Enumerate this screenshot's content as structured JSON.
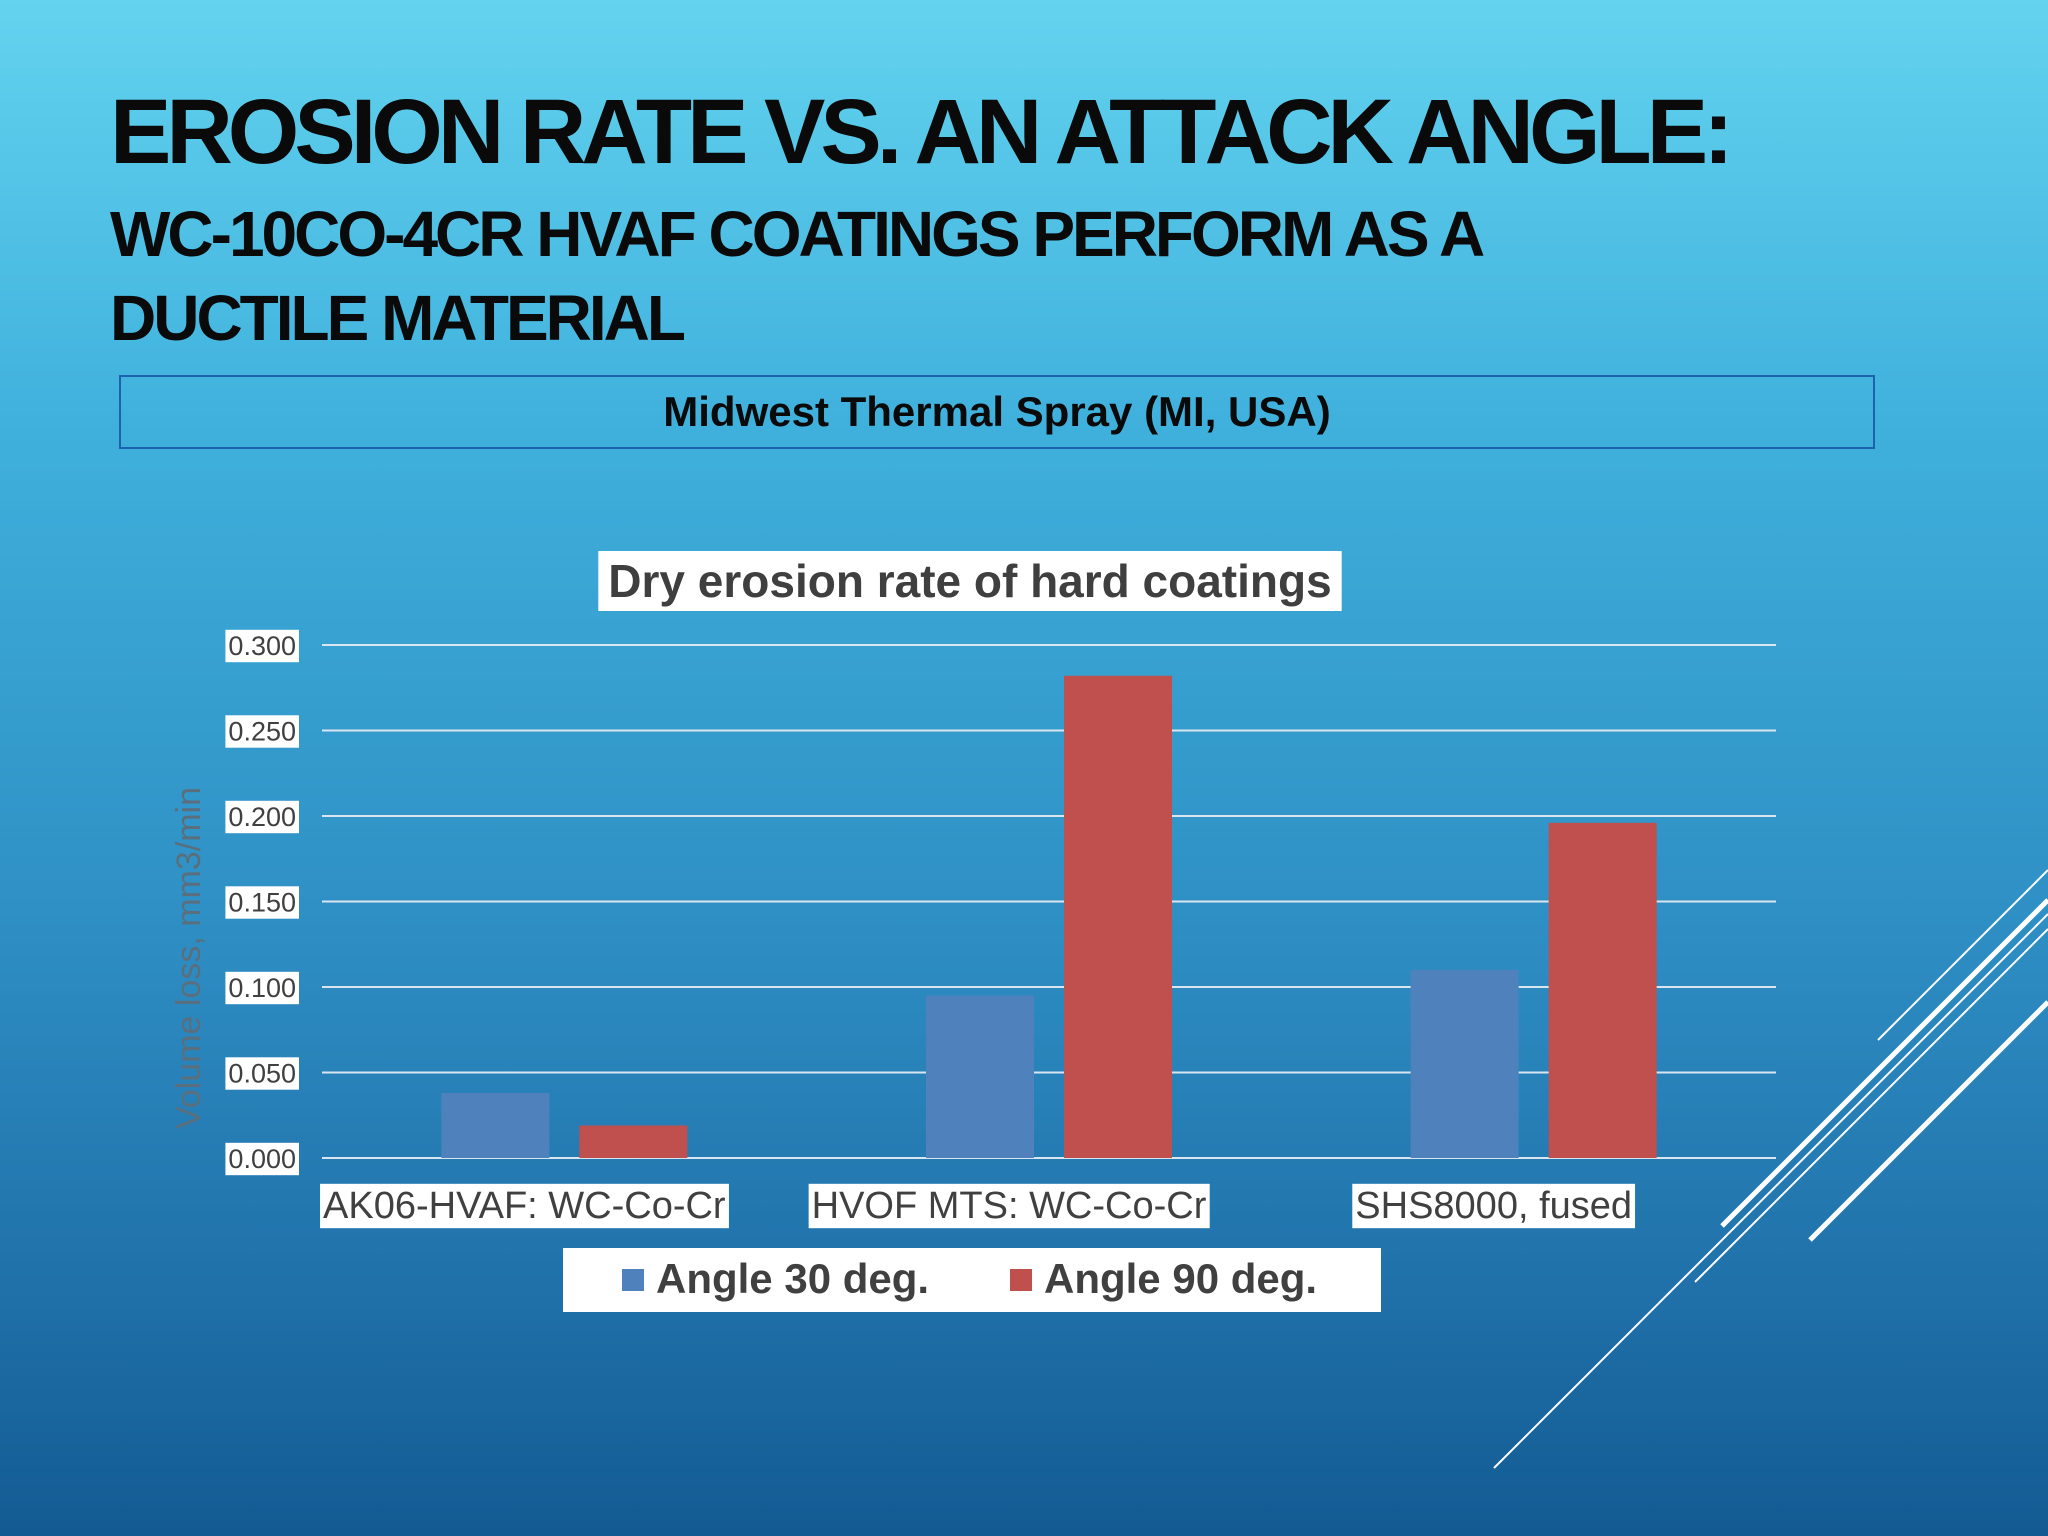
{
  "slide": {
    "title": "EROSION RATE VS. AN ATTACK ANGLE:",
    "subtitle": "WC-10CO-4CR HVAF COATINGS PERFORM AS A DUCTILE MATERIAL",
    "source_label": "Midwest Thermal Spray (MI, USA)"
  },
  "colors": {
    "series_30": "#4f81bd",
    "series_90": "#c0504d",
    "text": "#0a0a0a"
  },
  "chart_data": {
    "type": "bar",
    "title": "Dry erosion rate of hard coatings",
    "xlabel": "",
    "ylabel": "Volume loss, mm3/min",
    "ylim": [
      0,
      0.3
    ],
    "yticks": [
      "0.000",
      "0.050",
      "0.100",
      "0.150",
      "0.200",
      "0.250",
      "0.300"
    ],
    "ytick_values": [
      0,
      0.05,
      0.1,
      0.15,
      0.2,
      0.25,
      0.3
    ],
    "grid": true,
    "legend_position": "bottom",
    "categories": [
      "AK06-HVAF: WC-Co-Cr",
      "HVOF MTS: WC-Co-Cr",
      "SHS8000, fused"
    ],
    "series": [
      {
        "name": "Angle 30 deg.",
        "values": [
          0.038,
          0.095,
          0.11
        ]
      },
      {
        "name": "Angle 90 deg.",
        "values": [
          0.019,
          0.282,
          0.196
        ]
      }
    ]
  }
}
